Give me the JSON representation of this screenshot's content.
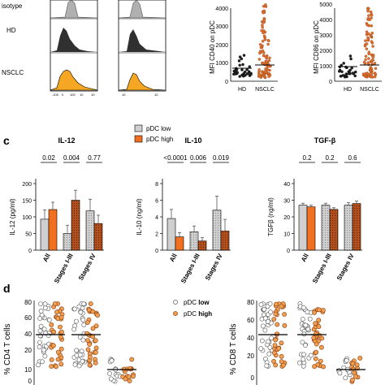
{
  "panel_top": {
    "histogram_labels": [
      "isotype",
      "HD",
      "NSCLC"
    ],
    "histogram_ticks": [
      "-100",
      "0",
      "100",
      "10",
      "10",
      "10",
      "10"
    ]
  },
  "panel_c_label": "c",
  "panel_d_label": "d",
  "legend_c": {
    "low": "pDC low",
    "high": "pDC high"
  },
  "legend_d": {
    "low": "pDC low",
    "high": "pDC high"
  },
  "colors": {
    "orange": "#F07020",
    "dark_orange": "#B4501C",
    "grey": "#C8C8C8",
    "dark_grey": "#707070",
    "hist_grey": "#B0B0B0",
    "hist_black": "#303030",
    "hist_orange": "#F5A623"
  },
  "chart_data": [
    {
      "id": "mfi-cd40",
      "type": "scatter",
      "ylabel": "MFI CD40 on pDC",
      "ylim": [
        0,
        4000
      ],
      "yticks": [
        "0",
        "1000",
        "2000",
        "3000",
        "4000"
      ],
      "categories": [
        "HD",
        "NSCLC"
      ],
      "medians": [
        700,
        900
      ]
    },
    {
      "id": "mfi-cd86",
      "type": "scatter",
      "ylabel": "MFI CD86 on pDC",
      "ylim": [
        0,
        4000
      ],
      "yticks": [
        "0",
        "1000",
        "2000",
        "3000",
        "4000",
        "5000"
      ],
      "categories": [
        "HD",
        "NSCLC"
      ],
      "medians": [
        800,
        1000
      ]
    },
    {
      "id": "il12",
      "type": "bar",
      "title": "IL-12",
      "ylabel": "IL-12 (pg/ml)",
      "ylim": [
        0,
        200
      ],
      "yticks": [
        "0",
        "50",
        "100",
        "150",
        "200"
      ],
      "categories": [
        "All",
        "Stages I-III",
        "Stages IV"
      ],
      "pvalues": [
        "0.02",
        "0.004",
        "0.77"
      ],
      "series": [
        {
          "name": "pDC low",
          "values": [
            93,
            50,
            118
          ],
          "errors": [
            28,
            25,
            35
          ]
        },
        {
          "name": "pDC high",
          "values": [
            122,
            150,
            80
          ],
          "errors": [
            22,
            30,
            25
          ]
        }
      ]
    },
    {
      "id": "il10",
      "type": "bar",
      "title": "IL-10",
      "ylabel": "IL-10 (ng/ml)",
      "ylim": [
        0,
        8
      ],
      "yticks": [
        "0",
        "2",
        "4",
        "6",
        "8"
      ],
      "categories": [
        "All",
        "Stages I-III",
        "Stages IV"
      ],
      "pvalues": [
        "<0.0001",
        "0.006",
        "0.019"
      ],
      "series": [
        {
          "name": "pDC low",
          "values": [
            3.8,
            2.2,
            4.8
          ],
          "errors": [
            1.1,
            0.7,
            1.7
          ]
        },
        {
          "name": "pDC high",
          "values": [
            1.6,
            1.1,
            2.3
          ],
          "errors": [
            0.5,
            0.4,
            1.4
          ]
        }
      ]
    },
    {
      "id": "tgfb",
      "type": "bar",
      "title": "TGF-β",
      "ylabel": "TGFβ (ng/ml)",
      "ylim": [
        0,
        40
      ],
      "yticks": [
        "0",
        "10",
        "20",
        "30",
        "40"
      ],
      "categories": [
        "All",
        "Stages I-III",
        "Stages IV"
      ],
      "pvalues": [
        "0.2",
        "0.2",
        "0.6"
      ],
      "series": [
        {
          "name": "pDC low",
          "values": [
            27,
            27,
            27
          ],
          "errors": [
            1.2,
            1.2,
            1.5
          ]
        },
        {
          "name": "pDC high",
          "values": [
            26,
            24.5,
            28
          ],
          "errors": [
            1,
            1,
            1.5
          ]
        }
      ]
    },
    {
      "id": "cd4",
      "type": "scatter",
      "ylabel": "% CD4 T cells",
      "yticks": [
        "0",
        "10",
        "20",
        "40",
        "60",
        "80"
      ],
      "groups": 3
    },
    {
      "id": "cd8",
      "type": "scatter",
      "ylabel": "% CD8 T cells",
      "yticks": [
        "0",
        "20",
        "40",
        "60",
        "80"
      ],
      "groups": 3
    }
  ]
}
